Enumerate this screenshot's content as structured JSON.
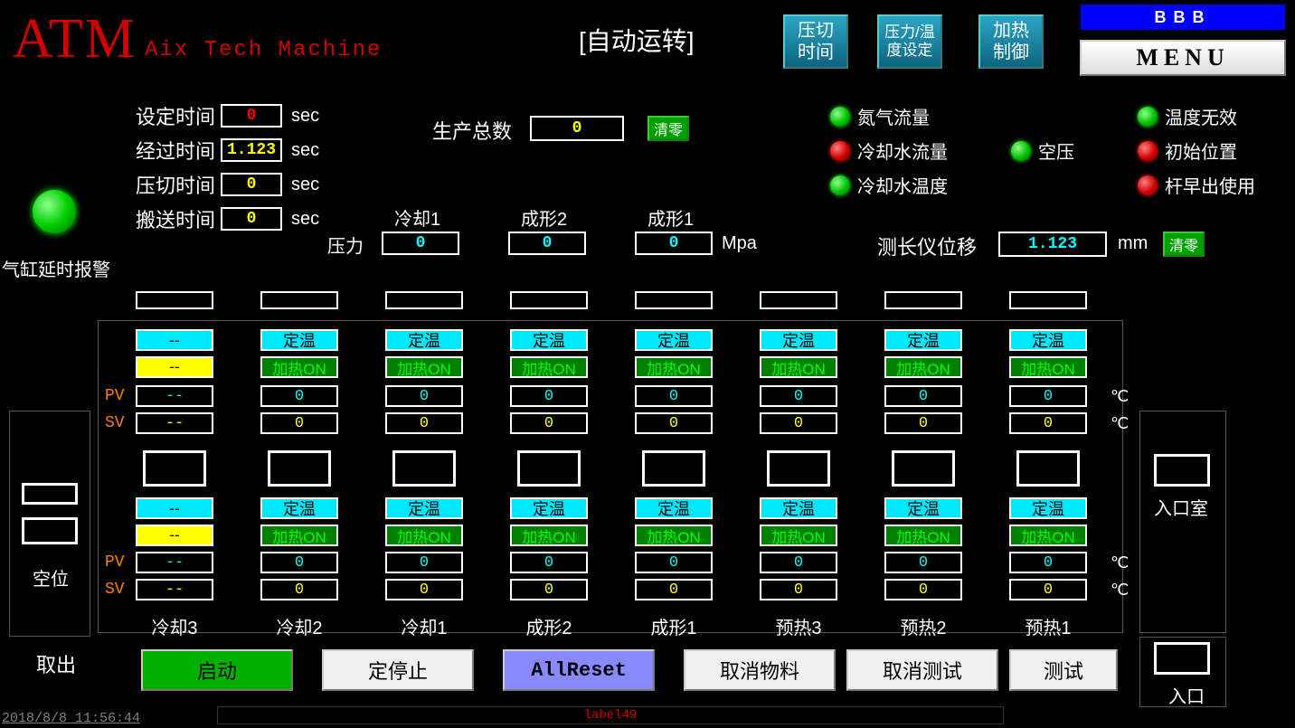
{
  "logo": {
    "big": "ATM",
    "sub": "Aix Tech Machine"
  },
  "autoRun": "[自动运转]",
  "topButtons": {
    "pressTime": "压切\n时间",
    "tempSet": "压力/温\n度设定",
    "heatCtrl": "加热\n制御",
    "bbb": "BBB",
    "menu": "MENU"
  },
  "timers": {
    "set": {
      "label": "设定时间",
      "value": "0",
      "color": "red",
      "unit": "sec"
    },
    "elapsed": {
      "label": "经过时间",
      "value": "1.123",
      "color": "yellow",
      "unit": "sec"
    },
    "press": {
      "label": "压切时间",
      "value": "0",
      "color": "yellow",
      "unit": "sec"
    },
    "carry": {
      "label": "搬送时间",
      "value": "0",
      "color": "yellow",
      "unit": "sec"
    }
  },
  "production": {
    "label": "生产总数",
    "value": "0",
    "clear": "清零"
  },
  "alarm": {
    "label": "气缸延时报警"
  },
  "status": {
    "n2flow": {
      "label": "氮气流量",
      "color": "green"
    },
    "coolflow": {
      "label": "冷却水流量",
      "color": "red"
    },
    "cooltemp": {
      "label": "冷却水温度",
      "color": "green"
    },
    "airpress": {
      "label": "空压",
      "color": "green"
    },
    "tempinv": {
      "label": "温度无效",
      "color": "green"
    },
    "initpos": {
      "label": "初始位置",
      "color": "red"
    },
    "rodearly": {
      "label": "杆早出使用",
      "color": "red"
    }
  },
  "pressure": {
    "rowLabel": "压力",
    "unit": "Mpa",
    "cols": [
      {
        "head": "冷却1",
        "value": "0"
      },
      {
        "head": "成形2",
        "value": "0"
      },
      {
        "head": "成形1",
        "value": "0"
      }
    ]
  },
  "displacement": {
    "label": "测长仪位移",
    "value": "1.123",
    "unit": "mm",
    "clear": "清零"
  },
  "zone": {
    "pvLabel": "PV",
    "svLabel": "SV",
    "degC": "℃",
    "firstColTeal": "--",
    "firstColYellow": "--",
    "firstColPv": "--",
    "firstColSv": "--",
    "tealText": "定温",
    "greenText": "加热ON",
    "pv": "0",
    "sv": "0",
    "colNames": [
      "冷却3",
      "冷却2",
      "冷却1",
      "成形2",
      "成形1",
      "预热3",
      "预热2",
      "预热1"
    ],
    "inletRoom": "入口室",
    "inlet": "入口",
    "empty": "空位"
  },
  "bottom": {
    "takeout": "取出",
    "start": "启动",
    "stop": "定停止",
    "allreset": "AllReset",
    "cancelMat": "取消物料",
    "cancelTest": "取消测试",
    "test": "测试"
  },
  "footerLabel": "label49",
  "timestamp": "2018/8/8 11:56:44",
  "colors": {
    "red": "#ff0000",
    "yellow": "#ffff00",
    "cyan": "#00ffff",
    "teal": "#00e8ff",
    "greenBtn": "#00b000",
    "greenCell": "#008000",
    "purple": "#8888ff",
    "logoRed": "#d00000"
  }
}
